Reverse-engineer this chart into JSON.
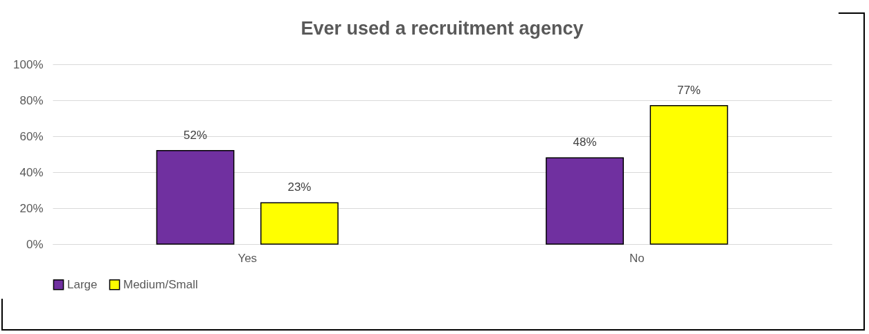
{
  "chart_data": {
    "type": "bar",
    "title": "Ever used a recruitment agency",
    "categories": [
      "Yes",
      "No"
    ],
    "series": [
      {
        "name": "Large",
        "color": "#7030a0",
        "values": [
          52,
          48
        ],
        "value_labels": [
          "52%",
          "48%"
        ]
      },
      {
        "name": "Medium/Small",
        "color": "#ffff00",
        "values": [
          23,
          77
        ],
        "value_labels": [
          "23%",
          "77%"
        ]
      }
    ],
    "ylim": [
      0,
      100
    ],
    "yticks": [
      {
        "value": 0,
        "label": "0%"
      },
      {
        "value": 20,
        "label": "20%"
      },
      {
        "value": 40,
        "label": "40%"
      },
      {
        "value": 60,
        "label": "60%"
      },
      {
        "value": 80,
        "label": "80%"
      },
      {
        "value": 100,
        "label": "100%"
      }
    ],
    "grid": "y",
    "legend": "bottom"
  }
}
